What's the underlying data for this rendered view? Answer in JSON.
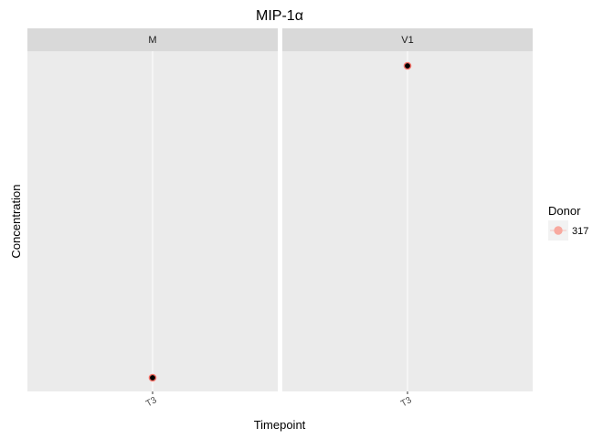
{
  "chart_data": {
    "type": "scatter",
    "title": "MIP-1α",
    "xlabel": "Timepoint",
    "ylabel": "Concentration",
    "facets": [
      {
        "label": "M",
        "categories": [
          "T3"
        ],
        "points": [
          {
            "x": "T3",
            "y": 0.0,
            "donor": "317"
          }
        ]
      },
      {
        "label": "V1",
        "categories": [
          "T3"
        ],
        "points": [
          {
            "x": "T3",
            "y": 1.0,
            "donor": "317"
          }
        ]
      }
    ],
    "y_relative_range": [
      0.0,
      1.0
    ],
    "y_ticks_shown": false,
    "grid": true,
    "legend": {
      "title": "Donor",
      "placement": "right",
      "entries": [
        {
          "label": "317",
          "color": "#f8a99f"
        }
      ]
    },
    "colors": {
      "panel_bg": "#ebebeb",
      "strip_bg": "#d9d9d9",
      "gridline": "#ffffff",
      "point_fill": "#000000",
      "point_outline": "#f8766d"
    }
  }
}
